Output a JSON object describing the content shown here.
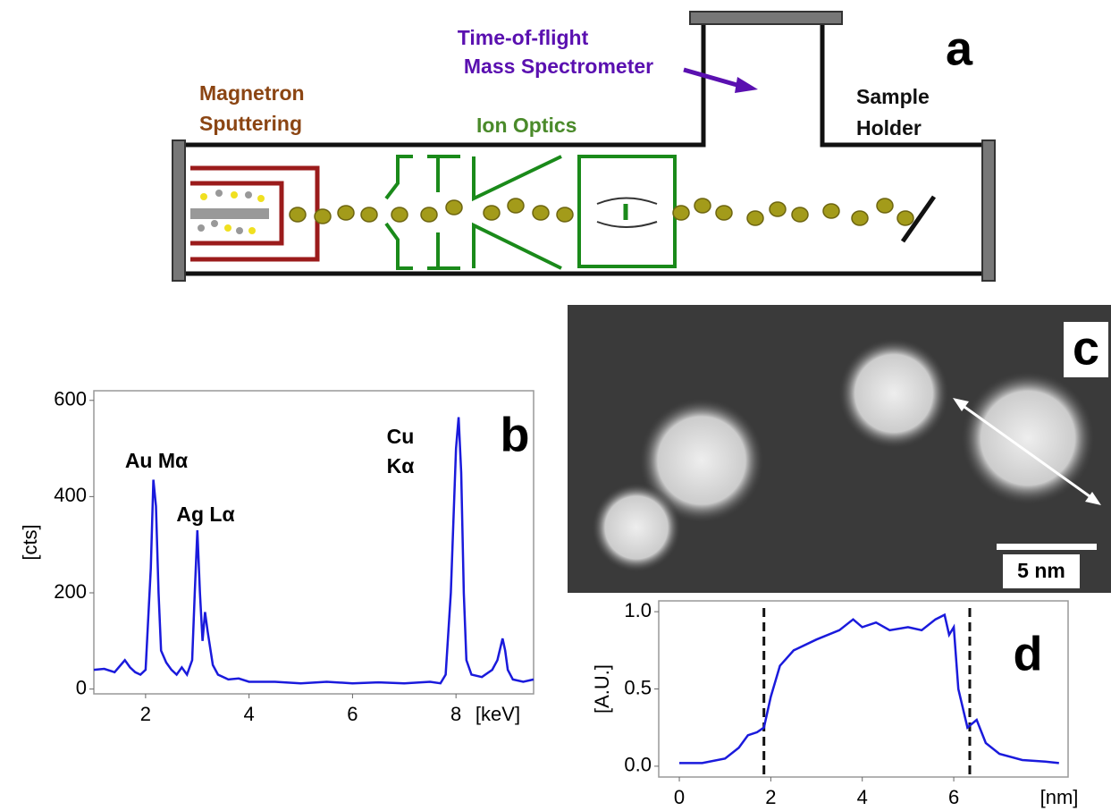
{
  "diagram": {
    "panel": "a",
    "spectrometer": [
      "Time-of-flight",
      "Mass Spectrometer"
    ],
    "source": [
      "Magnetron",
      "Sputtering"
    ],
    "optics": "Ion Optics",
    "holder": [
      "Sample",
      "Holder"
    ]
  },
  "image": {
    "panel": "c",
    "scale_bar": "5 nm"
  },
  "chart_data": [
    {
      "type": "line",
      "panel": "b",
      "y_label": "[cts]",
      "x_label": "[keV]",
      "color": "#1a1adc",
      "annotations": [
        "Au Mα",
        "Ag Lα",
        "Cu",
        "Kα"
      ],
      "xlim": [
        1,
        9.5
      ],
      "ylim": [
        -10,
        620
      ],
      "xticks": [
        2,
        4,
        6,
        8
      ],
      "yticks": [
        0,
        200,
        400,
        600
      ],
      "x": [
        1.0,
        1.2,
        1.4,
        1.6,
        1.7,
        1.8,
        1.9,
        2.0,
        2.1,
        2.15,
        2.2,
        2.25,
        2.3,
        2.4,
        2.5,
        2.6,
        2.7,
        2.8,
        2.9,
        2.95,
        3.0,
        3.05,
        3.1,
        3.15,
        3.2,
        3.3,
        3.4,
        3.6,
        3.8,
        4.0,
        4.5,
        5.0,
        5.5,
        6.0,
        6.5,
        7.0,
        7.5,
        7.7,
        7.8,
        7.9,
        8.0,
        8.05,
        8.1,
        8.15,
        8.2,
        8.3,
        8.5,
        8.7,
        8.8,
        8.9,
        8.95,
        9.0,
        9.1,
        9.3,
        9.5
      ],
      "values": [
        40,
        42,
        35,
        60,
        45,
        35,
        30,
        40,
        250,
        435,
        380,
        200,
        80,
        55,
        40,
        30,
        45,
        30,
        60,
        200,
        330,
        200,
        100,
        160,
        120,
        50,
        30,
        20,
        22,
        15,
        15,
        12,
        15,
        12,
        14,
        12,
        15,
        12,
        30,
        200,
        500,
        565,
        450,
        200,
        60,
        30,
        25,
        40,
        60,
        105,
        80,
        40,
        20,
        15,
        20
      ]
    },
    {
      "type": "line",
      "panel": "d",
      "y_label": "[A.U.]",
      "x_label": "[nm]",
      "color": "#1a1adc",
      "xlim": [
        -0.45,
        8.5
      ],
      "ylim": [
        -0.07,
        1.07
      ],
      "xticks": [
        0,
        2,
        4,
        6
      ],
      "yticks": [
        {
          "value": 0,
          "label": "0.0"
        },
        {
          "value": 0.5,
          "label": "0.5"
        },
        {
          "value": 1,
          "label": "1.0"
        }
      ],
      "reference_lines": [
        1.85,
        6.35
      ],
      "x": [
        0,
        0.5,
        1.0,
        1.3,
        1.5,
        1.7,
        1.85,
        2.0,
        2.2,
        2.5,
        3.0,
        3.5,
        3.8,
        4.0,
        4.3,
        4.6,
        5.0,
        5.3,
        5.6,
        5.8,
        5.9,
        6.0,
        6.1,
        6.3,
        6.5,
        6.7,
        7.0,
        7.5,
        8.0,
        8.3
      ],
      "values": [
        0.02,
        0.02,
        0.05,
        0.12,
        0.2,
        0.22,
        0.25,
        0.45,
        0.65,
        0.75,
        0.82,
        0.88,
        0.95,
        0.9,
        0.93,
        0.88,
        0.9,
        0.88,
        0.95,
        0.98,
        0.85,
        0.9,
        0.5,
        0.25,
        0.3,
        0.15,
        0.08,
        0.04,
        0.03,
        0.02
      ]
    }
  ]
}
